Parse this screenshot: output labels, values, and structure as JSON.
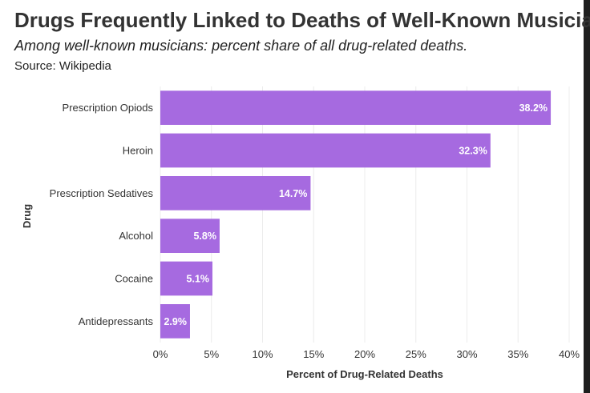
{
  "chart_data": {
    "type": "bar",
    "orientation": "horizontal",
    "title": "Drugs Frequently Linked to Deaths of Well-Known Musicians",
    "subtitle": "Among well-known musicians: percent share of all drug-related deaths.",
    "source": "Source: Wikipedia",
    "xlabel": "Percent of Drug-Related Deaths",
    "ylabel": "Drug",
    "categories": [
      "Prescription Opiods",
      "Heroin",
      "Prescription Sedatives",
      "Alcohol",
      "Cocaine",
      "Antidepressants"
    ],
    "values": [
      38.2,
      32.3,
      14.7,
      5.8,
      5.1,
      2.9
    ],
    "data_labels": [
      "38.2%",
      "32.3%",
      "14.7%",
      "5.8%",
      "5.1%",
      "2.9%"
    ],
    "xlim": [
      0,
      40
    ],
    "xticks": [
      0,
      5,
      10,
      15,
      20,
      25,
      30,
      35,
      40
    ],
    "xtick_labels": [
      "0%",
      "5%",
      "10%",
      "15%",
      "20%",
      "25%",
      "30%",
      "35%",
      "40%"
    ],
    "grid": "vertical",
    "bar_color": "#a66ae0"
  }
}
